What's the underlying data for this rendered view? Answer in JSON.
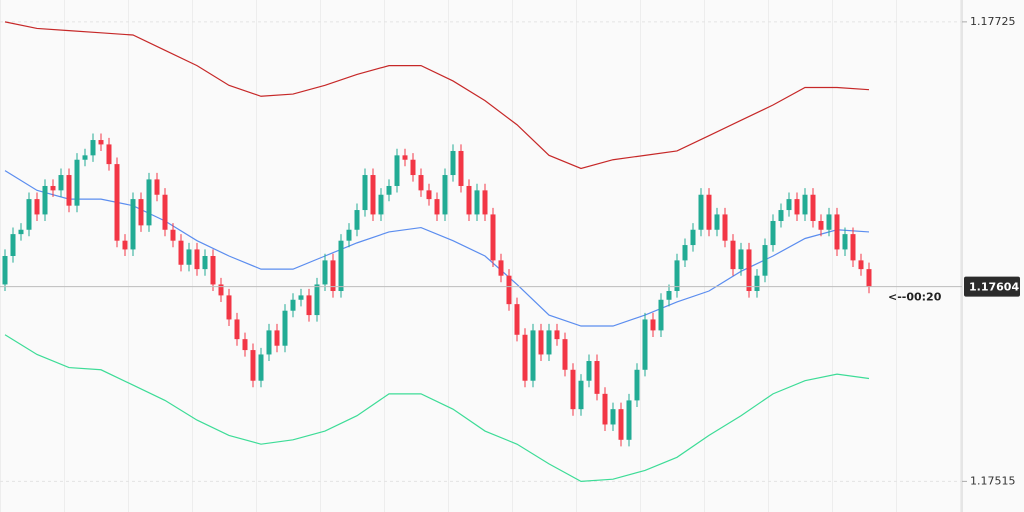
{
  "chart_data": {
    "type": "candlestick",
    "ylim": [
      1.17501,
      1.17735
    ],
    "yticks": [
      1.17725,
      1.17515
    ],
    "grid": true,
    "up_color": "#22ab94",
    "down_color": "#f23645",
    "open": [
      1.17605,
      1.17618,
      1.17628,
      1.1763,
      1.17644,
      1.17637,
      1.1765,
      1.17648,
      1.17655,
      1.17641,
      1.17662,
      1.17664,
      1.17671,
      1.17669,
      1.1766,
      1.17625,
      1.17621,
      1.17644,
      1.17632,
      1.17653,
      1.17646,
      1.1763,
      1.17625,
      1.17614,
      1.17621,
      1.17612,
      1.17618,
      1.17605,
      1.176,
      1.17589,
      1.1758,
      1.17575,
      1.17561,
      1.17573,
      1.17584,
      1.17577,
      1.17593,
      1.17598,
      1.176,
      1.17591,
      1.17605,
      1.17616,
      1.17602,
      1.17625,
      1.1763,
      1.17639,
      1.17655,
      1.17637,
      1.17646,
      1.1765,
      1.17664,
      1.17662,
      1.17655,
      1.17648,
      1.17644,
      1.17637,
      1.17655,
      1.17666,
      1.1765,
      1.17637,
      1.17648,
      1.17637,
      1.17616,
      1.17609,
      1.17596,
      1.17582,
      1.17561,
      1.17584,
      1.17573,
      1.17584,
      1.1758,
      1.17566,
      1.17548,
      1.17561,
      1.1757,
      1.17555,
      1.17541,
      1.17548,
      1.17534,
      1.17552,
      1.17566,
      1.17589,
      1.17584,
      1.17598,
      1.17602,
      1.17616,
      1.17623,
      1.1763,
      1.17646,
      1.1763,
      1.17637,
      1.17625,
      1.17612,
      1.17621,
      1.17602,
      1.17609,
      1.17623,
      1.17634,
      1.17639,
      1.17644,
      1.17637,
      1.17646,
      1.17634,
      1.1763,
      1.17637,
      1.17621,
      1.17628,
      1.17616,
      1.17612
    ],
    "high": [
      1.17621,
      1.17631,
      1.17633,
      1.17647,
      1.17647,
      1.17653,
      1.17653,
      1.17658,
      1.17658,
      1.17665,
      1.17667,
      1.17674,
      1.17674,
      1.17672,
      1.17663,
      1.17628,
      1.17647,
      1.17647,
      1.17656,
      1.17656,
      1.17649,
      1.17633,
      1.17628,
      1.17624,
      1.17624,
      1.17621,
      1.17621,
      1.17608,
      1.17603,
      1.17592,
      1.17583,
      1.17578,
      1.17576,
      1.17587,
      1.17587,
      1.17596,
      1.17601,
      1.17603,
      1.17603,
      1.17608,
      1.17619,
      1.17619,
      1.17628,
      1.17633,
      1.17642,
      1.17658,
      1.17658,
      1.17649,
      1.17653,
      1.17667,
      1.17667,
      1.17665,
      1.17658,
      1.17651,
      1.17647,
      1.17658,
      1.17669,
      1.17669,
      1.17653,
      1.17651,
      1.17651,
      1.1764,
      1.17619,
      1.17612,
      1.17599,
      1.17585,
      1.17587,
      1.17587,
      1.17587,
      1.17587,
      1.17583,
      1.17569,
      1.17564,
      1.17573,
      1.17573,
      1.17558,
      1.17551,
      1.17551,
      1.17555,
      1.17569,
      1.17592,
      1.17592,
      1.17601,
      1.17605,
      1.17619,
      1.17626,
      1.17633,
      1.17649,
      1.17649,
      1.1764,
      1.1764,
      1.17628,
      1.17624,
      1.17624,
      1.17612,
      1.17626,
      1.17637,
      1.17642,
      1.17647,
      1.17647,
      1.17649,
      1.17649,
      1.17637,
      1.1764,
      1.1764,
      1.17631,
      1.17631,
      1.17619,
      1.17615
    ],
    "low": [
      1.17602,
      1.17615,
      1.17625,
      1.17627,
      1.17634,
      1.17634,
      1.17645,
      1.17645,
      1.17638,
      1.17638,
      1.17659,
      1.17661,
      1.17666,
      1.17657,
      1.17622,
      1.17618,
      1.17618,
      1.17629,
      1.17629,
      1.17643,
      1.17627,
      1.17622,
      1.17611,
      1.17611,
      1.17609,
      1.17609,
      1.17602,
      1.17597,
      1.17586,
      1.17577,
      1.17572,
      1.17558,
      1.17558,
      1.1757,
      1.17574,
      1.17574,
      1.1759,
      1.17595,
      1.17588,
      1.17588,
      1.17602,
      1.17599,
      1.17599,
      1.17622,
      1.17627,
      1.17636,
      1.17634,
      1.17634,
      1.17643,
      1.17647,
      1.17659,
      1.17652,
      1.17645,
      1.17641,
      1.17634,
      1.17634,
      1.17652,
      1.17647,
      1.17634,
      1.17634,
      1.17634,
      1.17613,
      1.17606,
      1.17593,
      1.17579,
      1.17558,
      1.17558,
      1.1757,
      1.1757,
      1.17577,
      1.17563,
      1.17545,
      1.17545,
      1.17558,
      1.17552,
      1.17538,
      1.17538,
      1.17531,
      1.17531,
      1.17549,
      1.17563,
      1.17581,
      1.17581,
      1.17595,
      1.17599,
      1.17613,
      1.1762,
      1.17627,
      1.17627,
      1.17627,
      1.17622,
      1.17609,
      1.17609,
      1.17599,
      1.17599,
      1.17606,
      1.1762,
      1.17631,
      1.17636,
      1.17634,
      1.17634,
      1.17631,
      1.17627,
      1.17627,
      1.17618,
      1.17618,
      1.17613,
      1.17609,
      1.17601
    ],
    "close": [
      1.17618,
      1.17628,
      1.1763,
      1.17644,
      1.17637,
      1.1765,
      1.17648,
      1.17655,
      1.17641,
      1.17662,
      1.17664,
      1.17671,
      1.17669,
      1.1766,
      1.17625,
      1.17621,
      1.17644,
      1.17632,
      1.17653,
      1.17646,
      1.1763,
      1.17625,
      1.17614,
      1.17621,
      1.17612,
      1.17618,
      1.17605,
      1.176,
      1.17589,
      1.1758,
      1.17575,
      1.17561,
      1.17573,
      1.17584,
      1.17577,
      1.17593,
      1.17598,
      1.176,
      1.17591,
      1.17605,
      1.17616,
      1.17602,
      1.17625,
      1.1763,
      1.17639,
      1.17655,
      1.17637,
      1.17646,
      1.1765,
      1.17664,
      1.17662,
      1.17655,
      1.17648,
      1.17644,
      1.17637,
      1.17655,
      1.17666,
      1.1765,
      1.17637,
      1.17648,
      1.17637,
      1.17616,
      1.17609,
      1.17596,
      1.17582,
      1.17561,
      1.17584,
      1.17573,
      1.17584,
      1.1758,
      1.17566,
      1.17548,
      1.17561,
      1.1757,
      1.17555,
      1.17541,
      1.17548,
      1.17534,
      1.17552,
      1.17566,
      1.17589,
      1.17584,
      1.17598,
      1.17602,
      1.17616,
      1.17623,
      1.1763,
      1.17646,
      1.1763,
      1.17637,
      1.17625,
      1.17612,
      1.17621,
      1.17602,
      1.17609,
      1.17623,
      1.17634,
      1.17639,
      1.17644,
      1.17637,
      1.17646,
      1.17634,
      1.1763,
      1.17637,
      1.17621,
      1.17628,
      1.17616,
      1.17612,
      1.17604
    ],
    "band_x": [
      0,
      4,
      8,
      12,
      16,
      20,
      24,
      28,
      32,
      36,
      40,
      44,
      48,
      52,
      56,
      60,
      64,
      68,
      72,
      76,
      80,
      84,
      88,
      92,
      96,
      100,
      104,
      108
    ],
    "bands": [
      {
        "color": "#c62828",
        "values": [
          1.17725,
          1.17722,
          1.17721,
          1.1772,
          1.17719,
          1.17712,
          1.17705,
          1.17696,
          1.17691,
          1.17692,
          1.17696,
          1.17701,
          1.17705,
          1.17705,
          1.17698,
          1.17689,
          1.17678,
          1.17664,
          1.17658,
          1.17662,
          1.17664,
          1.17666,
          1.17673,
          1.1768,
          1.17687,
          1.17695,
          1.17695,
          1.17694
        ]
      },
      {
        "color": "#5b8def",
        "values": [
          1.17657,
          1.17648,
          1.17644,
          1.17644,
          1.17641,
          1.17634,
          1.17625,
          1.17618,
          1.17612,
          1.17612,
          1.17618,
          1.17624,
          1.17629,
          1.17631,
          1.17625,
          1.17618,
          1.17605,
          1.17591,
          1.17586,
          1.17586,
          1.17591,
          1.17597,
          1.17602,
          1.17611,
          1.17618,
          1.17626,
          1.1763,
          1.17629
        ]
      },
      {
        "color": "#3ddc97",
        "values": [
          1.17582,
          1.17573,
          1.17567,
          1.17566,
          1.17559,
          1.17552,
          1.17543,
          1.17536,
          1.17532,
          1.17534,
          1.17538,
          1.17545,
          1.17555,
          1.17555,
          1.17548,
          1.17538,
          1.17532,
          1.17523,
          1.17515,
          1.17516,
          1.1752,
          1.17526,
          1.17536,
          1.17545,
          1.17555,
          1.17561,
          1.17564,
          1.17562
        ]
      }
    ],
    "last_price": 1.17604,
    "countdown": "<--00:20"
  }
}
